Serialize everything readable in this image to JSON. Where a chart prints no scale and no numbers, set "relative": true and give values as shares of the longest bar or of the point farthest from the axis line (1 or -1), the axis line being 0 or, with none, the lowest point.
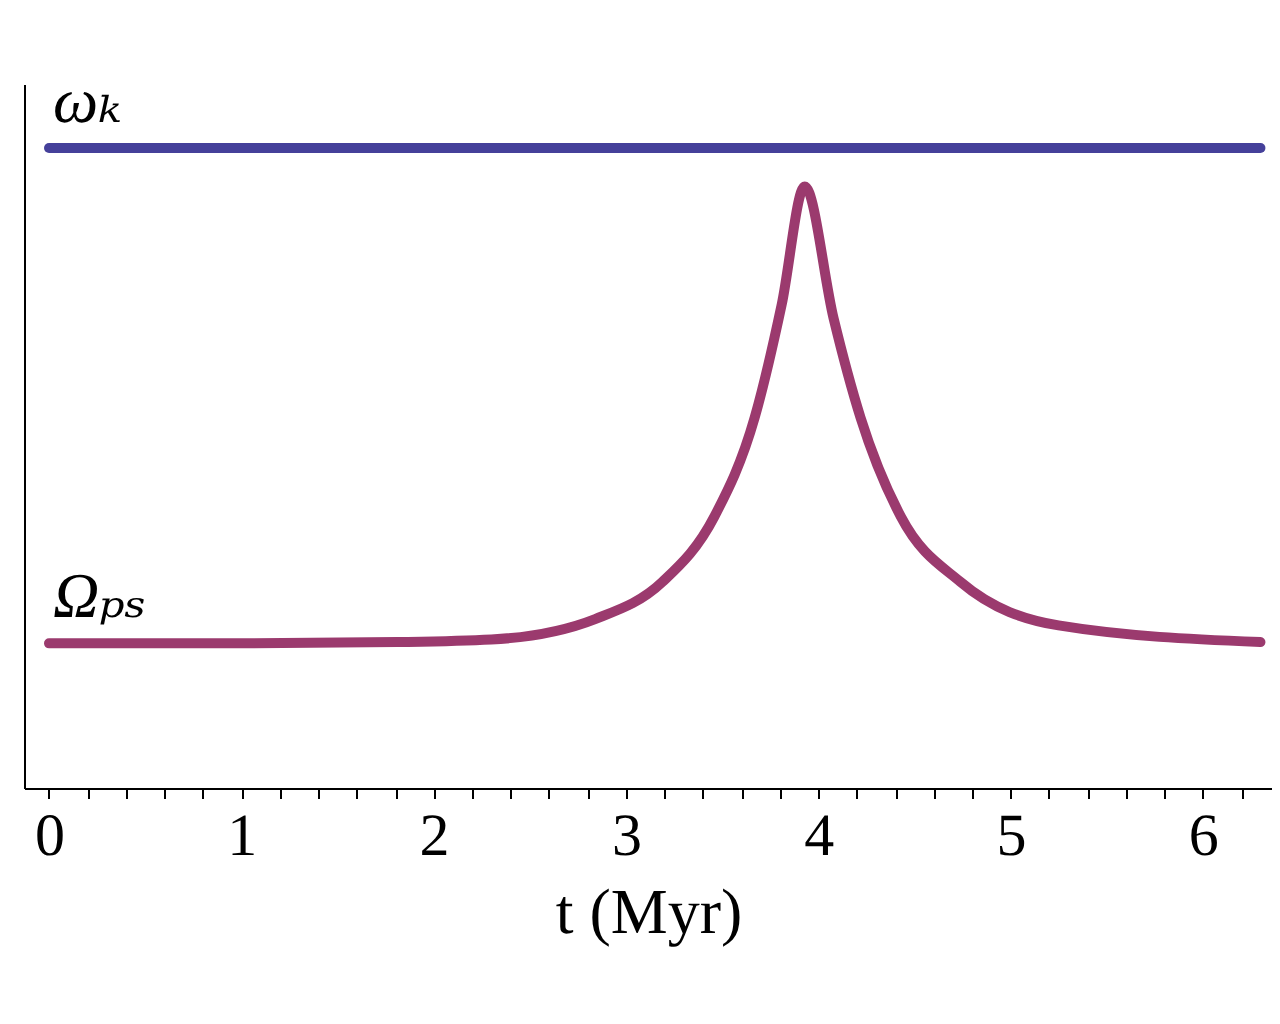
{
  "chart_data": {
    "type": "line",
    "xlabel": "t (Myr)",
    "relative": true,
    "xlim": [
      -0.13,
      6.36
    ],
    "xticks": [
      0,
      {
        "value": 0.2,
        "label": null
      },
      {
        "value": 0.4,
        "label": null
      },
      {
        "value": 0.6,
        "label": null
      },
      {
        "value": 0.8,
        "label": null
      },
      1,
      {
        "value": 1.2,
        "label": null
      },
      {
        "value": 1.4,
        "label": null
      },
      {
        "value": 1.6,
        "label": null
      },
      {
        "value": 1.8,
        "label": null
      },
      2,
      {
        "value": 2.2,
        "label": null
      },
      {
        "value": 2.4,
        "label": null
      },
      {
        "value": 2.6,
        "label": null
      },
      {
        "value": 2.8,
        "label": null
      },
      3,
      {
        "value": 3.2,
        "label": null
      },
      {
        "value": 3.4,
        "label": null
      },
      {
        "value": 3.6,
        "label": null
      },
      {
        "value": 3.8,
        "label": null
      },
      4,
      {
        "value": 4.2,
        "label": null
      },
      {
        "value": 4.4,
        "label": null
      },
      {
        "value": 4.6,
        "label": null
      },
      {
        "value": 4.8,
        "label": null
      },
      5,
      {
        "value": 5.2,
        "label": null
      },
      {
        "value": 5.4,
        "label": null
      },
      {
        "value": 5.6,
        "label": null
      },
      {
        "value": 5.8,
        "label": null
      },
      6,
      {
        "value": 6.2,
        "label": null
      }
    ],
    "series": [
      {
        "name": "ωₖ",
        "color": "#45409a",
        "x": [
          0,
          6.3
        ],
        "values": [
          1,
          1
        ]
      },
      {
        "name": "Ωₚₛ",
        "color": "#9b3a6e",
        "x": [
          0,
          1,
          1.81,
          2.3,
          2.84,
          3.19,
          3.46,
          3.67,
          3.81,
          3.93,
          4.08,
          4.22,
          4.43,
          4.74,
          5.25,
          6.3
        ],
        "values": [
          0.226,
          0.226,
          0.228,
          0.232,
          0.264,
          0.322,
          0.424,
          0.579,
          0.755,
          0.94,
          0.734,
          0.579,
          0.424,
          0.322,
          0.254,
          0.228
        ]
      }
    ]
  }
}
